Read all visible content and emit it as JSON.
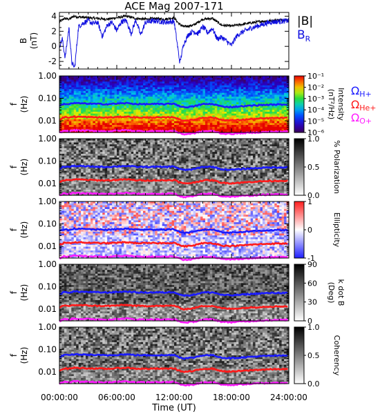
{
  "chart_data": {
    "type": "multi-panel spectrogram",
    "title": "ACE Mag 2007-171",
    "xlabel": "Time (UT)",
    "x_ticks": [
      "00:00:00",
      "06:00:00",
      "12:00:00",
      "18:00:00",
      "24:00:00"
    ],
    "x_range_hours": [
      0,
      24
    ],
    "freq_ticks": [
      "1.00",
      "0.10",
      "0.01"
    ],
    "freq_range_hz": [
      0.003,
      1.0
    ],
    "freq_scale": "log",
    "panels": [
      {
        "id": "b",
        "ylabel": "B",
        "yunit": "(nT)",
        "ylim": [
          -3,
          4.5
        ],
        "yticks": [
          "4",
          "2",
          "0",
          "-2"
        ],
        "legend": [
          {
            "label": "|B|",
            "color": "#000000"
          },
          {
            "label": "B",
            "sub": "R",
            "color": "#1010e0"
          }
        ],
        "series": [
          {
            "name": "|B|",
            "color": "#000000",
            "x": [
              0,
              0.5,
              1,
              1.5,
              2,
              3,
              4,
              5,
              6,
              7,
              8,
              9,
              10,
              11,
              12,
              12.5,
              13,
              14,
              15,
              16,
              17,
              18,
              19,
              20,
              21,
              22,
              23,
              24
            ],
            "values": [
              3.2,
              3.7,
              3.6,
              4.0,
              3.9,
              3.8,
              3.7,
              3.6,
              3.8,
              4.0,
              3.7,
              3.6,
              3.7,
              3.6,
              3.8,
              3.0,
              2.6,
              2.8,
              3.6,
              3.7,
              2.8,
              2.7,
              2.9,
              3.1,
              3.3,
              3.4,
              3.5,
              3.5
            ]
          },
          {
            "name": "B_R",
            "color": "#1010e0",
            "x": [
              0,
              0.3,
              0.6,
              1,
              1.3,
              1.6,
              2,
              2.5,
              3,
              3.5,
              4,
              4.5,
              5,
              5.5,
              6,
              6.5,
              7,
              7.5,
              8,
              8.5,
              9,
              10,
              11,
              12,
              12.3,
              12.6,
              13,
              13.5,
              14,
              14.5,
              15,
              15.5,
              16,
              16.5,
              17,
              17.5,
              18,
              18.5,
              19,
              20,
              21,
              22,
              23,
              24
            ],
            "values": [
              0.0,
              1.0,
              -1.5,
              2.5,
              -2.2,
              -2.8,
              2.6,
              3.1,
              3.4,
              3.0,
              3.2,
              1.3,
              2.8,
              3.2,
              2.1,
              3.3,
              3.4,
              1.7,
              3.5,
              1.5,
              3.2,
              3.4,
              3.2,
              3.3,
              0.6,
              -2.2,
              0.3,
              1.6,
              2.0,
              1.7,
              2.6,
              1.8,
              2.4,
              1.0,
              1.2,
              0.7,
              0.1,
              1.3,
              1.8,
              2.4,
              2.8,
              3.2,
              3.3,
              3.4
            ]
          }
        ]
      },
      {
        "id": "power",
        "ylabel": "f",
        "yunit": "(Hz)",
        "colorbar_label": "Intensity",
        "colorbar_unit": "(nT²/Hz)",
        "colorbar_ticks": [
          "10⁻¹",
          "10⁻²",
          "10⁻³",
          "10⁻⁴",
          "10⁻⁵",
          "10⁻⁶"
        ],
        "colorbar_scheme": "rainbow"
      },
      {
        "id": "polarization",
        "ylabel": "f",
        "yunit": "(Hz)",
        "colorbar_label": "% Polarization",
        "colorbar_ticks": [
          "1.0",
          "0.5",
          "0.0"
        ],
        "colorbar_scheme": "gray"
      },
      {
        "id": "ellipticity",
        "ylabel": "f",
        "yunit": "(Hz)",
        "colorbar_label": "Ellipticity",
        "colorbar_ticks": [
          "1",
          "0",
          "-1"
        ],
        "colorbar_scheme": "blue-white-red"
      },
      {
        "id": "kdotb",
        "ylabel": "f",
        "yunit": "(Hz)",
        "colorbar_label": "k dot B",
        "colorbar_unit": "(Deg)",
        "colorbar_ticks": [
          "90",
          "60",
          "30",
          "0"
        ],
        "colorbar_scheme": "gray"
      },
      {
        "id": "coherency",
        "ylabel": "f",
        "yunit": "(Hz)",
        "colorbar_label": "Coherency",
        "colorbar_ticks": [
          "1.0",
          "0.5",
          "0.0"
        ],
        "colorbar_scheme": "gray"
      }
    ],
    "gyrofrequency_lines": [
      {
        "name": "H+",
        "label": "Ω",
        "sub": "H+",
        "color": "#1a1aff",
        "x": [
          0,
          0.5,
          1,
          1.5,
          2,
          3,
          4,
          5,
          6,
          7,
          8,
          9,
          10,
          11,
          12,
          12.5,
          13,
          14,
          15,
          16,
          17,
          18,
          19,
          20,
          21,
          22,
          23,
          24
        ],
        "values": [
          0.046,
          0.057,
          0.055,
          0.061,
          0.06,
          0.058,
          0.056,
          0.055,
          0.058,
          0.061,
          0.056,
          0.055,
          0.056,
          0.055,
          0.058,
          0.046,
          0.04,
          0.043,
          0.055,
          0.056,
          0.043,
          0.041,
          0.044,
          0.047,
          0.05,
          0.052,
          0.053,
          0.053
        ]
      },
      {
        "name": "He+",
        "label": "Ω",
        "sub": "He+",
        "color": "#ff1a1a",
        "x": [
          0,
          0.5,
          1,
          1.5,
          2,
          3,
          4,
          5,
          6,
          7,
          8,
          9,
          10,
          11,
          12,
          12.5,
          13,
          14,
          15,
          16,
          17,
          18,
          19,
          20,
          21,
          22,
          23,
          24
        ],
        "values": [
          0.0115,
          0.0143,
          0.0138,
          0.0153,
          0.015,
          0.0145,
          0.014,
          0.0138,
          0.0145,
          0.0153,
          0.014,
          0.0138,
          0.014,
          0.0138,
          0.0145,
          0.0115,
          0.01,
          0.0108,
          0.0138,
          0.014,
          0.0108,
          0.0103,
          0.011,
          0.0118,
          0.0125,
          0.013,
          0.0133,
          0.0133
        ]
      },
      {
        "name": "O+",
        "label": "Ω",
        "sub": "O+",
        "color": "#ff1aff",
        "x": [
          0,
          0.5,
          1,
          1.5,
          2,
          3,
          4,
          5,
          6,
          7,
          8,
          9,
          10,
          11,
          12,
          12.5,
          13,
          14,
          15,
          16,
          17,
          18,
          19,
          20,
          21,
          22,
          23,
          24
        ],
        "values": [
          0.0029,
          0.0036,
          0.0034,
          0.0038,
          0.0037,
          0.0036,
          0.0035,
          0.0034,
          0.0036,
          0.0038,
          0.0035,
          0.0034,
          0.0035,
          0.0034,
          0.0036,
          0.0029,
          0.0025,
          0.0027,
          0.0034,
          0.0035,
          0.0027,
          0.0026,
          0.0028,
          0.0029,
          0.0031,
          0.0032,
          0.0033,
          0.0033
        ]
      }
    ]
  }
}
